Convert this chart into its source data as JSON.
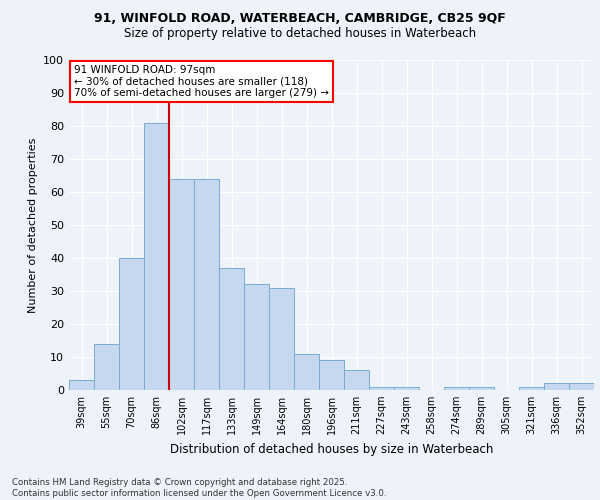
{
  "title_line1": "91, WINFOLD ROAD, WATERBEACH, CAMBRIDGE, CB25 9QF",
  "title_line2": "Size of property relative to detached houses in Waterbeach",
  "xlabel": "Distribution of detached houses by size in Waterbeach",
  "ylabel": "Number of detached properties",
  "categories": [
    "39sqm",
    "55sqm",
    "70sqm",
    "86sqm",
    "102sqm",
    "117sqm",
    "133sqm",
    "149sqm",
    "164sqm",
    "180sqm",
    "196sqm",
    "211sqm",
    "227sqm",
    "243sqm",
    "258sqm",
    "274sqm",
    "289sqm",
    "305sqm",
    "321sqm",
    "336sqm",
    "352sqm"
  ],
  "values": [
    3,
    14,
    40,
    81,
    64,
    64,
    37,
    32,
    31,
    11,
    9,
    6,
    1,
    1,
    0,
    1,
    1,
    0,
    1,
    2,
    2
  ],
  "bar_color": "#c5d8f0",
  "bar_edge_color": "#7aadd4",
  "vline_color": "#cc0000",
  "vline_pos": 3.5,
  "annotation_text_line1": "91 WINFOLD ROAD: 97sqm",
  "annotation_text_line2": "← 30% of detached houses are smaller (118)",
  "annotation_text_line3": "70% of semi-detached houses are larger (279) →",
  "ylim": [
    0,
    100
  ],
  "yticks": [
    0,
    10,
    20,
    30,
    40,
    50,
    60,
    70,
    80,
    90,
    100
  ],
  "footnote": "Contains HM Land Registry data © Crown copyright and database right 2025.\nContains public sector information licensed under the Open Government Licence v3.0.",
  "background_color": "#eef2f9",
  "plot_bg_color": "#eef2f9",
  "grid_color": "#ffffff"
}
